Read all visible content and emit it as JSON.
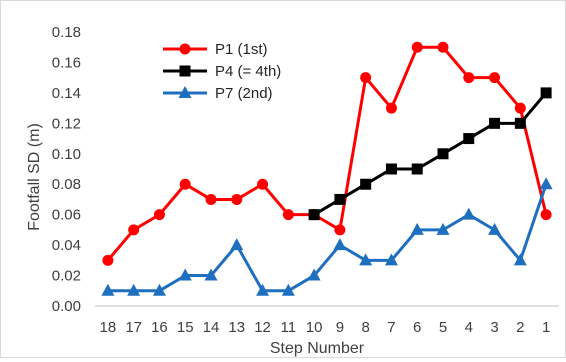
{
  "chart_data": {
    "type": "line",
    "xlabel": "Step Number",
    "ylabel": "Footfall SD (m)",
    "categories": [
      "18",
      "17",
      "16",
      "15",
      "14",
      "13",
      "12",
      "11",
      "10",
      "9",
      "8",
      "7",
      "6",
      "5",
      "4",
      "3",
      "2",
      "1"
    ],
    "ylim": [
      0,
      0.18
    ],
    "yticks": [
      "0.00",
      "0.02",
      "0.04",
      "0.06",
      "0.08",
      "0.10",
      "0.12",
      "0.14",
      "0.16",
      "0.18"
    ],
    "grid": false,
    "legend_position": "top-left",
    "series": [
      {
        "name": "P1 (1st)",
        "color": "#ff0000",
        "marker": "circle",
        "values": [
          0.03,
          0.05,
          0.06,
          0.08,
          0.07,
          0.07,
          0.08,
          0.06,
          0.06,
          0.05,
          0.15,
          0.13,
          0.17,
          0.17,
          0.15,
          0.15,
          0.13,
          0.06
        ]
      },
      {
        "name": "P4 (= 4th)",
        "color": "#000000",
        "marker": "square",
        "values": [
          null,
          null,
          null,
          null,
          null,
          null,
          null,
          null,
          0.06,
          0.07,
          0.08,
          0.09,
          0.09,
          0.1,
          0.11,
          0.12,
          0.12,
          0.14
        ]
      },
      {
        "name": "P7 (2nd)",
        "color": "#1f6fc0",
        "marker": "triangle",
        "values": [
          0.01,
          0.01,
          0.01,
          0.02,
          0.02,
          0.04,
          0.01,
          0.01,
          0.02,
          0.04,
          0.03,
          0.03,
          0.05,
          0.05,
          0.06,
          0.05,
          0.03,
          0.08
        ]
      }
    ]
  }
}
